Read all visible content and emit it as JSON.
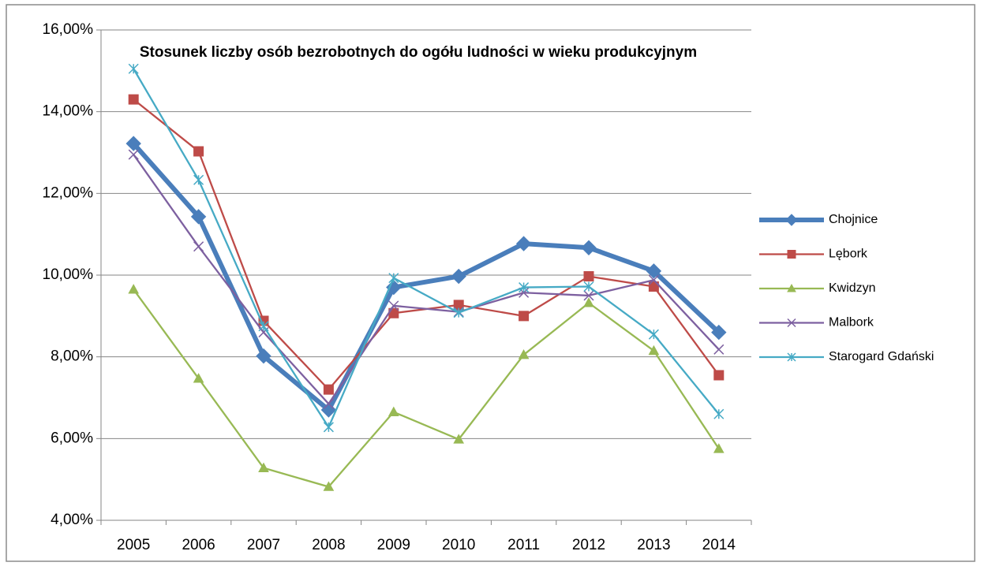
{
  "chart_data": {
    "type": "line",
    "title": "Stosunek liczby osób bezrobotnych do ogółu ludności w wieku produkcyjnym",
    "categories": [
      "2005",
      "2006",
      "2007",
      "2008",
      "2009",
      "2010",
      "2011",
      "2012",
      "2013",
      "2014"
    ],
    "series": [
      {
        "name": "Chojnice",
        "color": "#4a7ebb",
        "marker": "diamond",
        "values": [
          13.22,
          11.43,
          8.02,
          6.7,
          9.7,
          9.97,
          10.77,
          10.67,
          10.1,
          8.6
        ]
      },
      {
        "name": "Lębork",
        "color": "#be4b48",
        "marker": "square",
        "values": [
          14.3,
          13.03,
          8.88,
          7.2,
          9.07,
          9.27,
          9.0,
          9.97,
          9.72,
          7.55
        ]
      },
      {
        "name": "Kwidzyn",
        "color": "#98b954",
        "marker": "triangle",
        "values": [
          9.65,
          7.47,
          5.28,
          4.82,
          6.65,
          5.98,
          8.05,
          9.32,
          8.15,
          5.75
        ]
      },
      {
        "name": "Malbork",
        "color": "#7d60a0",
        "marker": "x",
        "values": [
          12.95,
          10.7,
          8.6,
          6.85,
          9.25,
          9.1,
          9.57,
          9.5,
          9.88,
          8.18
        ]
      },
      {
        "name": "Starogard Gdański",
        "color": "#46aac5",
        "marker": "star",
        "values": [
          15.05,
          12.33,
          8.75,
          6.28,
          9.93,
          9.08,
          9.7,
          9.72,
          8.55,
          6.6
        ]
      }
    ],
    "ylim": [
      4,
      16
    ],
    "yticks": [
      {
        "value": 4,
        "label": "4,00%"
      },
      {
        "value": 6,
        "label": "6,00%"
      },
      {
        "value": 8,
        "label": "8,00%"
      },
      {
        "value": 10,
        "label": "10,00%"
      },
      {
        "value": 12,
        "label": "12,00%"
      },
      {
        "value": 14,
        "label": "14,00%"
      },
      {
        "value": 16,
        "label": "16,00%"
      }
    ],
    "grid": true,
    "legend": "right"
  }
}
